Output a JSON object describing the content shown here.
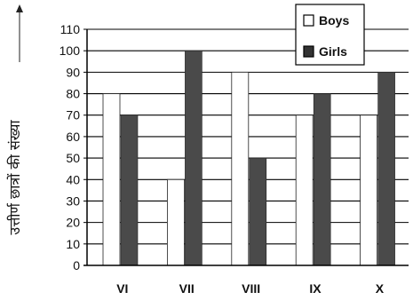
{
  "chart_data": {
    "type": "bar",
    "title": "",
    "xlabel": "",
    "ylabel": "उत्तीर्ण छात्रों की संख्या",
    "categories": [
      "VI",
      "VII",
      "VIII",
      "IX",
      "X"
    ],
    "series": [
      {
        "name": "Boys",
        "values": [
          80,
          40,
          90,
          70,
          70
        ],
        "color": "#ffffff"
      },
      {
        "name": "Girls",
        "values": [
          70,
          100,
          50,
          80,
          90
        ],
        "color": "#4a4a4a"
      }
    ],
    "ylim": [
      0,
      110
    ],
    "yticks": [
      0,
      10,
      20,
      30,
      40,
      50,
      60,
      70,
      80,
      90,
      100,
      110
    ],
    "grid": true,
    "legend_position": "top-right"
  }
}
